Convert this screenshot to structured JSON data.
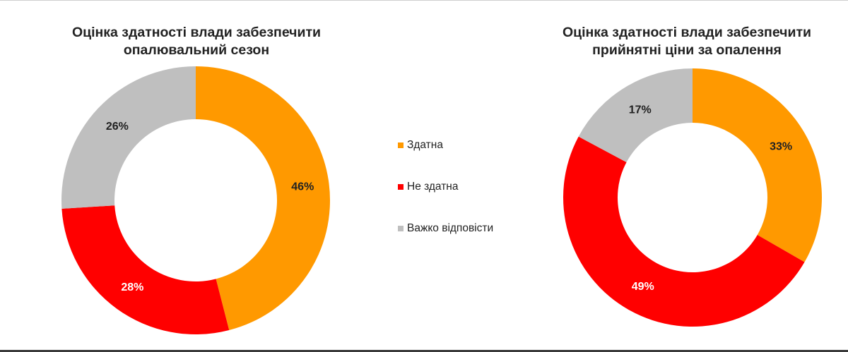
{
  "chart_data": [
    {
      "type": "pie",
      "donut": true,
      "title_lines": [
        "Оцінка здатності влади забезпечити",
        "опалювальний сезон"
      ],
      "slices": [
        {
          "label": "Здатна",
          "value": 46,
          "value_label": "46%",
          "color": "#FF9900"
        },
        {
          "label": "Не здатна",
          "value": 28,
          "value_label": "28%",
          "color": "#FF0000"
        },
        {
          "label": "Важко відповісти",
          "value": 26,
          "value_label": "26%",
          "color": "#BFBFBF"
        }
      ]
    },
    {
      "type": "pie",
      "donut": true,
      "title_lines": [
        "Оцінка здатності влади забезпечити",
        "прийнятні ціни за опалення"
      ],
      "slices": [
        {
          "label": "Здатна",
          "value": 33,
          "value_label": "33%",
          "color": "#FF9900"
        },
        {
          "label": "Не здатна",
          "value": 49,
          "value_label": "49%",
          "color": "#FF0000"
        },
        {
          "label": "Важко відповісти",
          "value": 17,
          "value_label": "17%",
          "color": "#BFBFBF"
        }
      ]
    }
  ],
  "legend": {
    "placement": "center",
    "items": [
      {
        "label": "Здатна",
        "color": "#FF9900"
      },
      {
        "label": "Не здатна",
        "color": "#FF0000"
      },
      {
        "label": "Важко відповісти",
        "color": "#BFBFBF"
      }
    ]
  }
}
